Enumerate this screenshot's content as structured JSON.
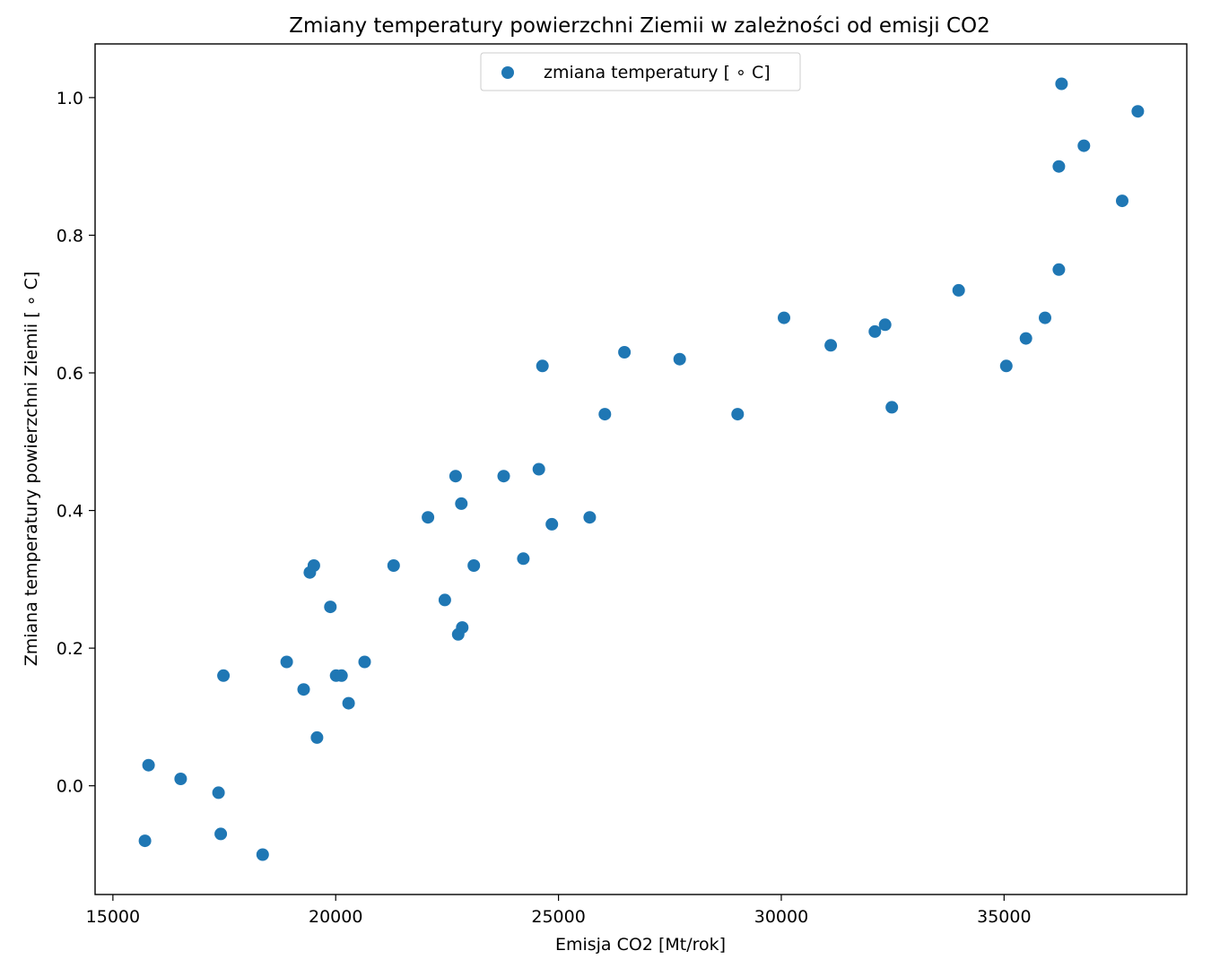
{
  "chart_data": {
    "type": "scatter",
    "title": "Zmiany temperatury powierzchni Ziemii w zależności od emisji CO2",
    "xlabel": "Emisja CO2 [Mt/rok]",
    "ylabel": "Zmiana temperatury powierzchni Ziemii [$^\\circ$C]",
    "ylabel_display": "Zmiana temperatury powierzchni Ziemii [ ∘ C]",
    "xlim": [
      14600,
      39100
    ],
    "ylim": [
      -0.158,
      1.078
    ],
    "xticks": [
      15000,
      20000,
      25000,
      30000,
      35000
    ],
    "yticks": [
      0.0,
      0.2,
      0.4,
      0.6,
      0.8,
      1.0
    ],
    "ytick_labels": [
      "0.0",
      "0.2",
      "0.4",
      "0.6",
      "0.8",
      "1.0"
    ],
    "legend": {
      "placement": "upper-center",
      "label": "zmiana temperatury [ ∘ C]"
    },
    "grid": false,
    "series": [
      {
        "name": "zmiana temperatury [ ∘ C]",
        "color": "#1f77b4",
        "points": [
          [
            15720,
            -0.08
          ],
          [
            15800,
            0.03
          ],
          [
            16520,
            0.01
          ],
          [
            17370,
            -0.01
          ],
          [
            17420,
            -0.07
          ],
          [
            17480,
            0.16
          ],
          [
            18360,
            -0.1
          ],
          [
            18900,
            0.18
          ],
          [
            19280,
            0.14
          ],
          [
            19420,
            0.31
          ],
          [
            19510,
            0.32
          ],
          [
            19580,
            0.07
          ],
          [
            19880,
            0.26
          ],
          [
            20010,
            0.16
          ],
          [
            20130,
            0.16
          ],
          [
            20290,
            0.12
          ],
          [
            20650,
            0.18
          ],
          [
            21300,
            0.32
          ],
          [
            22070,
            0.39
          ],
          [
            22450,
            0.27
          ],
          [
            22690,
            0.45
          ],
          [
            22750,
            0.22
          ],
          [
            22820,
            0.41
          ],
          [
            22840,
            0.23
          ],
          [
            23100,
            0.32
          ],
          [
            23770,
            0.45
          ],
          [
            24210,
            0.33
          ],
          [
            24560,
            0.46
          ],
          [
            24640,
            0.61
          ],
          [
            24850,
            0.38
          ],
          [
            25700,
            0.39
          ],
          [
            26040,
            0.54
          ],
          [
            26480,
            0.63
          ],
          [
            27720,
            0.62
          ],
          [
            29020,
            0.54
          ],
          [
            30060,
            0.68
          ],
          [
            31110,
            0.64
          ],
          [
            32100,
            0.66
          ],
          [
            32330,
            0.67
          ],
          [
            32480,
            0.55
          ],
          [
            33980,
            0.72
          ],
          [
            35050,
            0.61
          ],
          [
            35490,
            0.65
          ],
          [
            35920,
            0.68
          ],
          [
            36230,
            0.9
          ],
          [
            36230,
            0.75
          ],
          [
            36290,
            1.02
          ],
          [
            36790,
            0.93
          ],
          [
            37650,
            0.85
          ],
          [
            38000,
            0.98
          ]
        ]
      }
    ]
  }
}
